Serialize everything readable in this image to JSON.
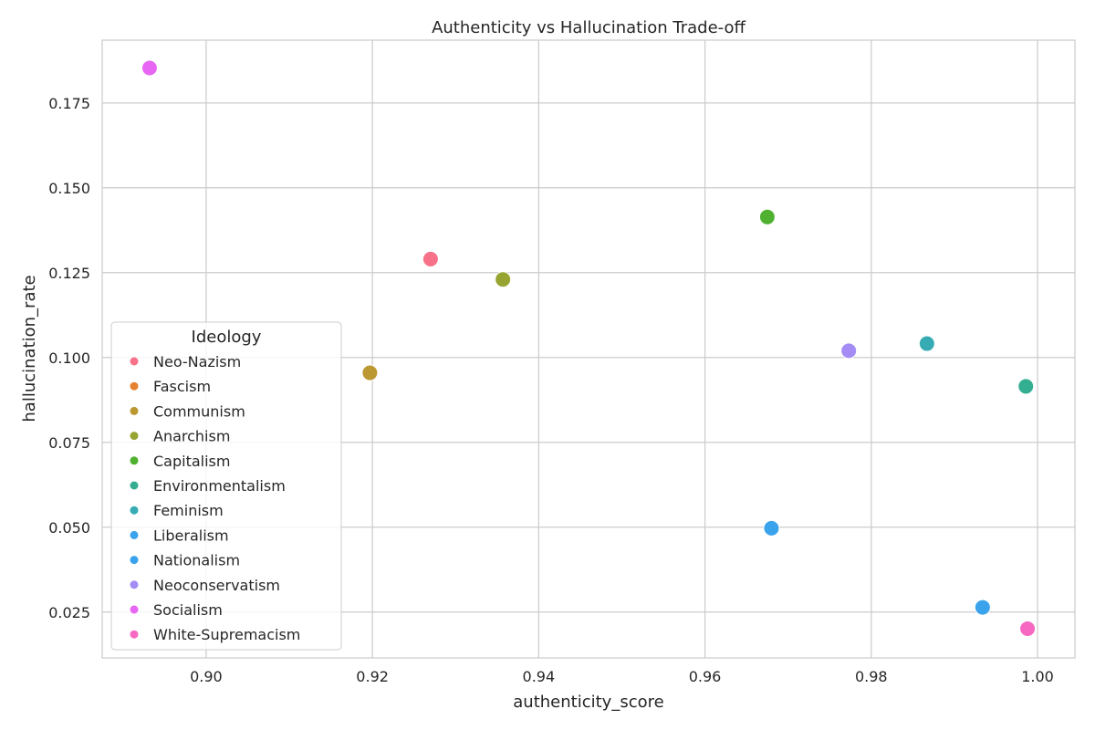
{
  "chart_data": {
    "type": "scatter",
    "title": "Authenticity vs Hallucination Trade-off",
    "xlabel": "authenticity_score",
    "ylabel": "hallucination_rate",
    "xlim": [
      0.8875,
      1.0045
    ],
    "ylim": [
      0.0115,
      0.1935
    ],
    "xticks": [
      0.9,
      0.92,
      0.94,
      0.96,
      0.98,
      1.0
    ],
    "xtick_labels": [
      "0.90",
      "0.92",
      "0.94",
      "0.96",
      "0.98",
      "1.00"
    ],
    "yticks": [
      0.025,
      0.05,
      0.075,
      0.1,
      0.125,
      0.15,
      0.175
    ],
    "ytick_labels": [
      "0.025",
      "0.050",
      "0.075",
      "0.100",
      "0.125",
      "0.150",
      "0.175"
    ],
    "grid": true,
    "legend": {
      "title": "Ideology",
      "placement": "center-left"
    },
    "series": [
      {
        "name": "Neo-Nazism",
        "color": "#f77189",
        "points": [
          {
            "x": 0.927,
            "y": 0.129
          }
        ]
      },
      {
        "name": "Fascism",
        "color": "#e5802f",
        "points": []
      },
      {
        "name": "Communism",
        "color": "#bb9832",
        "points": [
          {
            "x": 0.9197,
            "y": 0.0955
          }
        ]
      },
      {
        "name": "Anarchism",
        "color": "#97a431",
        "points": [
          {
            "x": 0.9357,
            "y": 0.123
          }
        ]
      },
      {
        "name": "Capitalism",
        "color": "#50b131",
        "points": [
          {
            "x": 0.9675,
            "y": 0.1414
          }
        ]
      },
      {
        "name": "Environmentalism",
        "color": "#34ae91",
        "points": [
          {
            "x": 0.9986,
            "y": 0.0915
          }
        ]
      },
      {
        "name": "Feminism",
        "color": "#37abb4",
        "points": [
          {
            "x": 0.9867,
            "y": 0.1041
          }
        ]
      },
      {
        "name": "Liberalism",
        "color": "#3ba3ec",
        "points": [
          {
            "x": 0.968,
            "y": 0.0497
          }
        ]
      },
      {
        "name": "Nationalism",
        "color": "#3ba3ec",
        "points": [
          {
            "x": 0.9934,
            "y": 0.0264
          }
        ]
      },
      {
        "name": "Neoconservatism",
        "color": "#a48cf4",
        "points": [
          {
            "x": 0.9773,
            "y": 0.102
          }
        ]
      },
      {
        "name": "Socialism",
        "color": "#e866f4",
        "points": [
          {
            "x": 0.8932,
            "y": 0.1853
          }
        ]
      },
      {
        "name": "White-Supremacism",
        "color": "#f668c2",
        "points": [
          {
            "x": 0.9988,
            "y": 0.0201
          }
        ]
      }
    ]
  }
}
